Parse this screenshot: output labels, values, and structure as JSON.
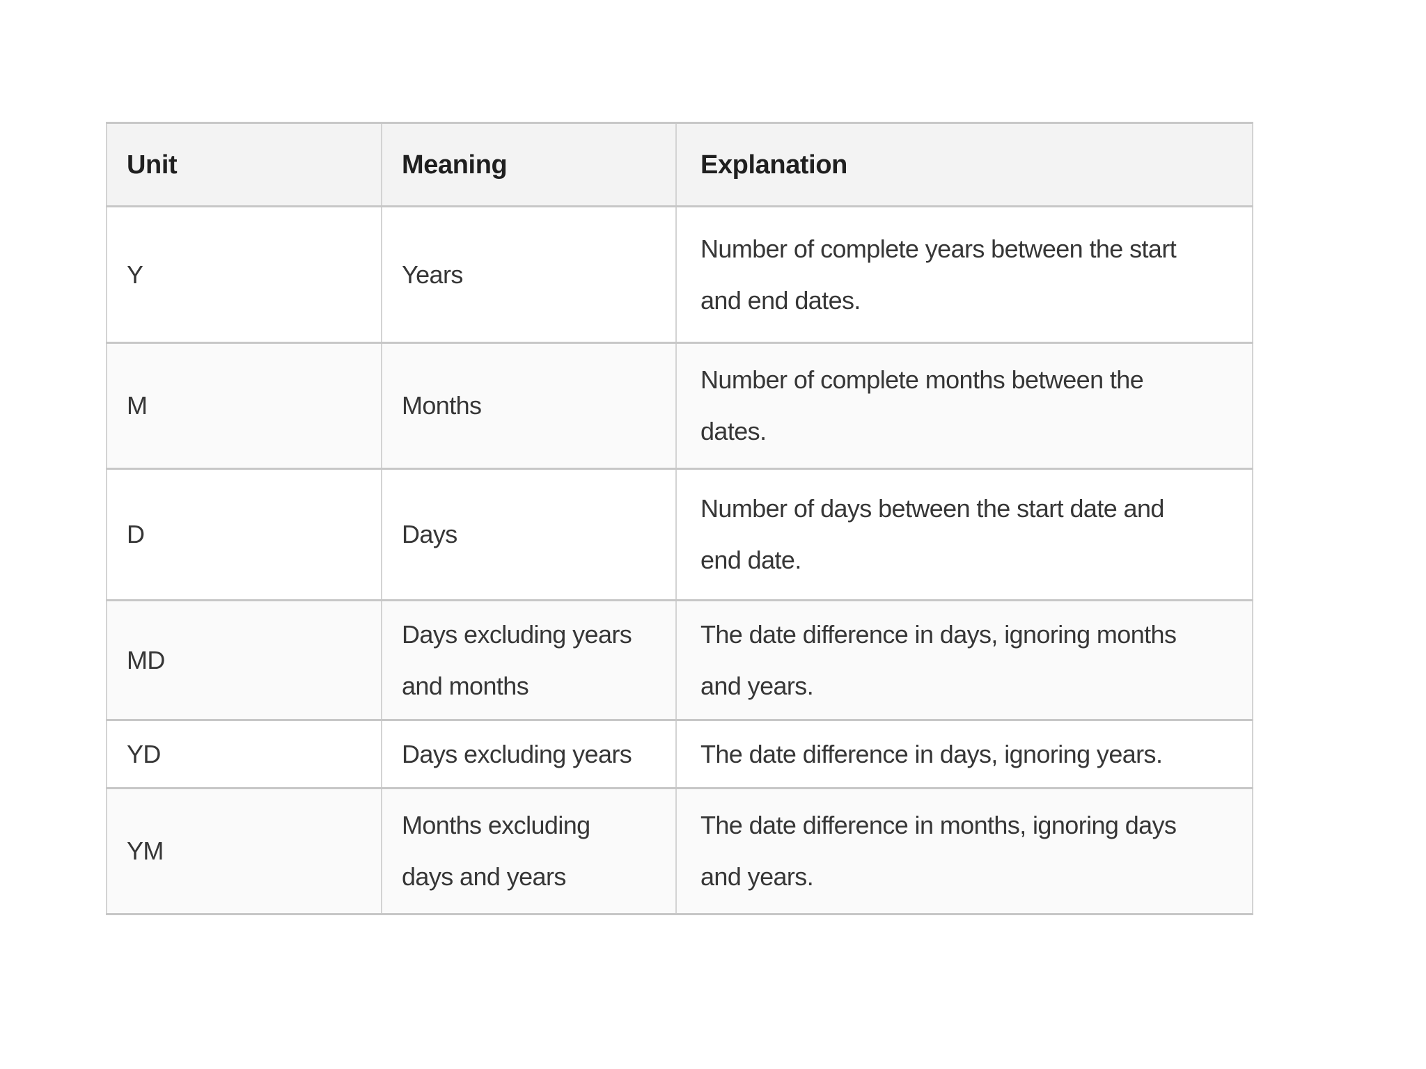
{
  "table": {
    "columns": [
      {
        "label": "Unit"
      },
      {
        "label": "Meaning"
      },
      {
        "label": "Explanation"
      }
    ],
    "rows": [
      {
        "unit": "Y",
        "meaning": "Years",
        "explanation": "Number of complete years between the start\nand end dates."
      },
      {
        "unit": "M",
        "meaning": "Months",
        "explanation": "Number of complete months between the\ndates."
      },
      {
        "unit": "D",
        "meaning": "Days",
        "explanation": "Number of days between the start date and\nend date."
      },
      {
        "unit": "MD",
        "meaning": "Days excluding years\nand months",
        "explanation": "The date difference in days, ignoring months\nand years."
      },
      {
        "unit": "YD",
        "meaning": "Days excluding years",
        "explanation": "The date difference in days, ignoring years."
      },
      {
        "unit": "YM",
        "meaning": "Months excluding\ndays and years",
        "explanation": "The date difference in months, ignoring days\nand years."
      }
    ],
    "colors": {
      "header_background": "#f3f3f3",
      "stripe_background": "#fafafa",
      "row_background": "#ffffff",
      "border_horizontal": "#c7c7c7",
      "border_vertical": "#d3d3d3",
      "header_text": "#1f1f1f",
      "body_text": "#363636",
      "page_background": "#ffffff"
    }
  }
}
